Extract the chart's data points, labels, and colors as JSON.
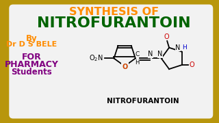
{
  "bg_outer": "#b8960c",
  "bg_inner": "#f2f2f2",
  "title_line1": "SYNTHESIS OF",
  "title_line1_color": "#ff8c00",
  "title_line2": "NITROFURANTOIN",
  "title_line2_color": "#006400",
  "by_text": "By",
  "by2_text": "Dr D S BELE",
  "by_color": "#ff8c00",
  "for_line1": "FOR",
  "for_line2": "PHARMACY",
  "for_line3": "Students",
  "for_color": "#800080",
  "molecule_label": "NITROFURANTOIN",
  "molecule_label_color": "#000000",
  "black": "#000000",
  "red": "#cc0000",
  "blue": "#0000cc",
  "o_color": "#cc4400"
}
